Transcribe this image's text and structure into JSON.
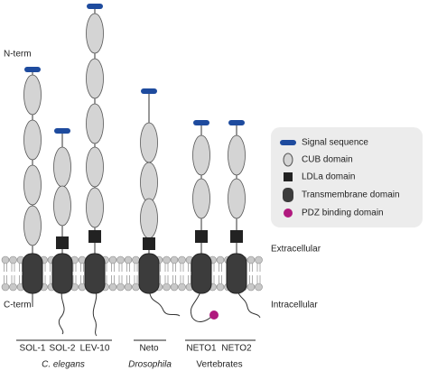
{
  "labels": {
    "n_term": "N-term",
    "c_term": "C-term",
    "extracellular": "Extracellular",
    "intracellular": "Intracellular"
  },
  "legend": [
    {
      "label": "Signal sequence"
    },
    {
      "label": "CUB domain"
    },
    {
      "label": "LDLa domain"
    },
    {
      "label": "Transmembrane domain"
    },
    {
      "label": "PDZ binding domain"
    }
  ],
  "proteins": [
    {
      "name": "SOL-1"
    },
    {
      "name": "SOL-2"
    },
    {
      "name": "LEV-10"
    },
    {
      "name": "Neto"
    },
    {
      "name": "NETO1"
    },
    {
      "name": "NETO2"
    }
  ],
  "groups": [
    {
      "label": "C. elegans"
    },
    {
      "label": "Drosophila"
    },
    {
      "label": "Vertebrates"
    }
  ]
}
